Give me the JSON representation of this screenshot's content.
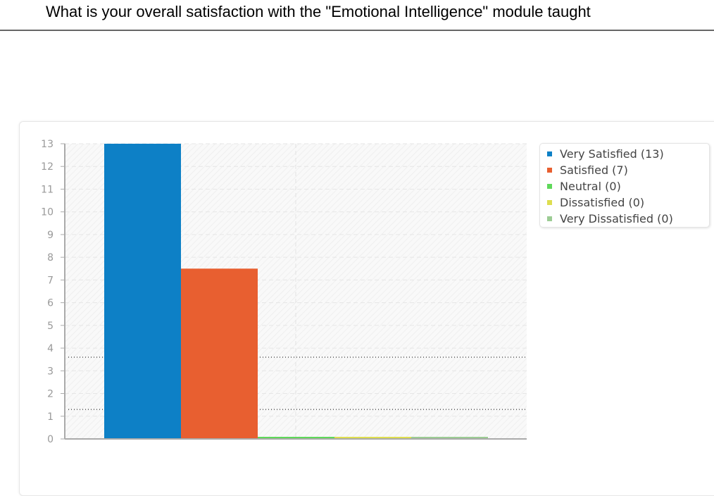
{
  "title": "What is your overall satisfaction with the \"Emotional Intelligence\" module taught",
  "chart_data": {
    "type": "bar",
    "categories": [
      "Very Satisfied",
      "Satisfied",
      "Neutral",
      "Dissatisfied",
      "Very Dissatisfied"
    ],
    "values": [
      13,
      7,
      0,
      0,
      0
    ],
    "rendered_bar_values": [
      13,
      7.5,
      0,
      0,
      0
    ],
    "colors": [
      "#0d80c6",
      "#e85f30",
      "#5fd85a",
      "#dede50",
      "#9ccc94"
    ],
    "legend": [
      "Very Satisfied (13)",
      "Satisfied (7)",
      "Neutral (0)",
      "Dissatisfied (0)",
      "Very Dissatisfied (0)"
    ],
    "legend_position": "top-right",
    "ylim": [
      0,
      13
    ],
    "yticks": [
      "0",
      "1",
      "2",
      "3",
      "4",
      "5",
      "6",
      "7",
      "8",
      "9",
      "10",
      "11",
      "12",
      "13"
    ],
    "reference_lines": [
      1.3,
      3.6
    ],
    "grid": true
  }
}
